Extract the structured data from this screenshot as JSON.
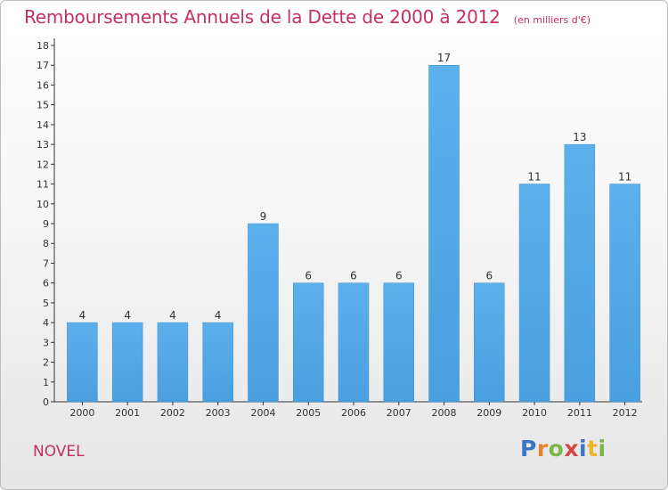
{
  "chart_data": {
    "type": "bar",
    "title": "Remboursements Annuels de la Dette de 2000 à 2012",
    "subtitle": "(en milliers d'€)",
    "categories": [
      "2000",
      "2001",
      "2002",
      "2003",
      "2004",
      "2005",
      "2006",
      "2007",
      "2008",
      "2009",
      "2010",
      "2011",
      "2012"
    ],
    "values": [
      4,
      4,
      4,
      4,
      9,
      6,
      6,
      6,
      17,
      6,
      11,
      13,
      11
    ],
    "data_labels": [
      "4",
      "4",
      "4",
      "4",
      "9",
      "6",
      "6",
      "6",
      "17",
      "6",
      "11",
      "13",
      "11"
    ],
    "ylim": [
      0,
      18
    ],
    "yticks": [
      "0",
      "1",
      "2",
      "3",
      "4",
      "5",
      "6",
      "7",
      "8",
      "9",
      "10",
      "11",
      "12",
      "13",
      "14",
      "15",
      "16",
      "17",
      "18"
    ],
    "grid": false,
    "bar_color": "#4a9fdf"
  },
  "footer": {
    "commune": "NOVEL",
    "logo": "Proxiti",
    "logo_colors": [
      "#3a76c4",
      "#e8832a",
      "#7ab648",
      "#d64545",
      "#3a76c4",
      "#e8b82a",
      "#7ab648"
    ]
  }
}
